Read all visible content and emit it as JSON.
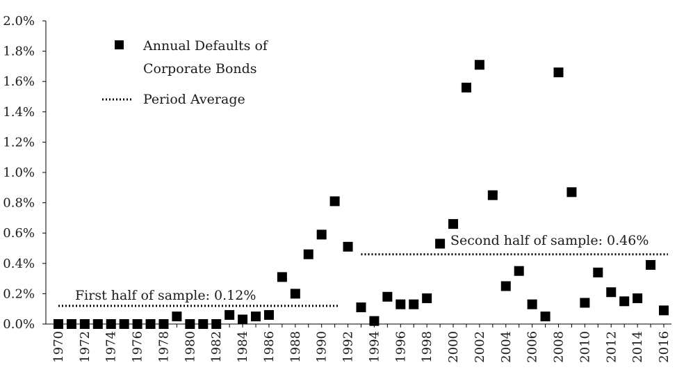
{
  "chart_data": {
    "type": "scatter",
    "title": "",
    "xlabel": "",
    "ylabel": "",
    "ylim": [
      0,
      2.0
    ],
    "y_ticks": [
      "0.0%",
      "0.2%",
      "0.4%",
      "0.6%",
      "0.8%",
      "1.0%",
      "1.2%",
      "1.4%",
      "1.6%",
      "1.8%",
      "2.0%"
    ],
    "x_ticks": [
      "1970",
      "1972",
      "1974",
      "1976",
      "1978",
      "1980",
      "1982",
      "1984",
      "1986",
      "1988",
      "1990",
      "1992",
      "1994",
      "1996",
      "1998",
      "2000",
      "2002",
      "2004",
      "2006",
      "2008",
      "2010",
      "2012",
      "2014",
      "2016"
    ],
    "legend": {
      "placement": "top-left",
      "series_label_line1": "Annual Defaults of",
      "series_label_line2": "Corporate Bonds",
      "average_label": "Period Average"
    },
    "series": [
      {
        "name": "Annual Defaults of Corporate Bonds",
        "x": [
          1970,
          1971,
          1972,
          1973,
          1974,
          1975,
          1976,
          1977,
          1978,
          1979,
          1980,
          1981,
          1982,
          1983,
          1984,
          1985,
          1986,
          1987,
          1988,
          1989,
          1990,
          1991,
          1992,
          1993,
          1994,
          1995,
          1996,
          1997,
          1998,
          1999,
          2000,
          2001,
          2002,
          2003,
          2004,
          2005,
          2006,
          2007,
          2008,
          2009,
          2010,
          2011,
          2012,
          2013,
          2014,
          2015,
          2016
        ],
        "y": [
          0.0,
          0.0,
          0.0,
          0.0,
          0.0,
          0.0,
          0.0,
          0.0,
          0.0,
          0.05,
          0.0,
          0.0,
          0.0,
          0.06,
          0.03,
          0.05,
          0.06,
          0.31,
          0.2,
          0.46,
          0.59,
          0.81,
          0.51,
          0.11,
          0.02,
          0.18,
          0.13,
          0.13,
          0.17,
          0.53,
          0.66,
          1.56,
          1.71,
          0.85,
          0.25,
          0.35,
          0.13,
          0.05,
          1.66,
          0.87,
          0.14,
          0.34,
          0.21,
          0.15,
          0.17,
          0.39,
          0.09
        ]
      }
    ],
    "period_averages": [
      {
        "label": "First half of sample: 0.12%",
        "value": 0.12,
        "x_start": 1970,
        "x_end": 1991
      },
      {
        "label": "Second half of sample: 0.46%",
        "value": 0.46,
        "x_start": 1993,
        "x_end": 2016
      }
    ]
  }
}
